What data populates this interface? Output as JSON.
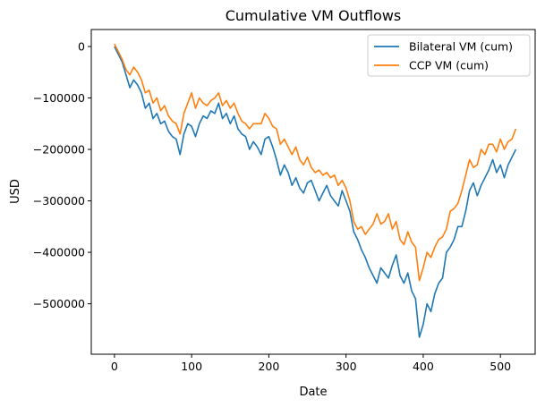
{
  "chart_data": {
    "type": "line",
    "title": "Cumulative VM Outflows",
    "xlabel": "Date",
    "ylabel": "USD",
    "xlim": [
      -30,
      545
    ],
    "ylim": [
      -598000,
      33000
    ],
    "xticks": [
      0,
      100,
      200,
      300,
      400,
      500
    ],
    "yticks": [
      0,
      -100000,
      -200000,
      -300000,
      -400000,
      -500000
    ],
    "legend_position": "top-right",
    "grid": false,
    "series": [
      {
        "name": "Bilateral VM (cum)",
        "color": "#1f77b4",
        "points": [
          [
            0,
            0
          ],
          [
            5,
            -15000
          ],
          [
            10,
            -30000
          ],
          [
            15,
            -55000
          ],
          [
            20,
            -80000
          ],
          [
            25,
            -65000
          ],
          [
            30,
            -75000
          ],
          [
            35,
            -90000
          ],
          [
            40,
            -120000
          ],
          [
            45,
            -110000
          ],
          [
            50,
            -140000
          ],
          [
            55,
            -130000
          ],
          [
            60,
            -150000
          ],
          [
            65,
            -145000
          ],
          [
            70,
            -165000
          ],
          [
            75,
            -175000
          ],
          [
            80,
            -180000
          ],
          [
            85,
            -210000
          ],
          [
            90,
            -170000
          ],
          [
            95,
            -150000
          ],
          [
            100,
            -155000
          ],
          [
            105,
            -175000
          ],
          [
            110,
            -150000
          ],
          [
            115,
            -135000
          ],
          [
            120,
            -140000
          ],
          [
            125,
            -125000
          ],
          [
            130,
            -130000
          ],
          [
            135,
            -110000
          ],
          [
            140,
            -140000
          ],
          [
            145,
            -130000
          ],
          [
            150,
            -150000
          ],
          [
            155,
            -135000
          ],
          [
            160,
            -160000
          ],
          [
            165,
            -170000
          ],
          [
            170,
            -175000
          ],
          [
            175,
            -200000
          ],
          [
            180,
            -185000
          ],
          [
            185,
            -195000
          ],
          [
            190,
            -210000
          ],
          [
            195,
            -180000
          ],
          [
            200,
            -175000
          ],
          [
            205,
            -195000
          ],
          [
            210,
            -220000
          ],
          [
            215,
            -250000
          ],
          [
            220,
            -230000
          ],
          [
            225,
            -245000
          ],
          [
            230,
            -270000
          ],
          [
            235,
            -255000
          ],
          [
            240,
            -275000
          ],
          [
            245,
            -285000
          ],
          [
            250,
            -265000
          ],
          [
            255,
            -260000
          ],
          [
            260,
            -280000
          ],
          [
            265,
            -300000
          ],
          [
            270,
            -285000
          ],
          [
            275,
            -270000
          ],
          [
            280,
            -290000
          ],
          [
            285,
            -300000
          ],
          [
            290,
            -310000
          ],
          [
            295,
            -280000
          ],
          [
            300,
            -300000
          ],
          [
            305,
            -320000
          ],
          [
            310,
            -360000
          ],
          [
            315,
            -375000
          ],
          [
            320,
            -395000
          ],
          [
            325,
            -410000
          ],
          [
            330,
            -430000
          ],
          [
            335,
            -445000
          ],
          [
            340,
            -460000
          ],
          [
            345,
            -430000
          ],
          [
            350,
            -440000
          ],
          [
            355,
            -450000
          ],
          [
            360,
            -425000
          ],
          [
            365,
            -405000
          ],
          [
            370,
            -445000
          ],
          [
            375,
            -460000
          ],
          [
            380,
            -440000
          ],
          [
            385,
            -475000
          ],
          [
            390,
            -490000
          ],
          [
            395,
            -565000
          ],
          [
            400,
            -540000
          ],
          [
            405,
            -500000
          ],
          [
            410,
            -515000
          ],
          [
            415,
            -480000
          ],
          [
            420,
            -460000
          ],
          [
            425,
            -450000
          ],
          [
            430,
            -400000
          ],
          [
            435,
            -390000
          ],
          [
            440,
            -375000
          ],
          [
            445,
            -350000
          ],
          [
            450,
            -350000
          ],
          [
            455,
            -320000
          ],
          [
            460,
            -280000
          ],
          [
            465,
            -265000
          ],
          [
            470,
            -290000
          ],
          [
            475,
            -270000
          ],
          [
            480,
            -255000
          ],
          [
            485,
            -240000
          ],
          [
            490,
            -220000
          ],
          [
            495,
            -245000
          ],
          [
            500,
            -230000
          ],
          [
            505,
            -255000
          ],
          [
            510,
            -230000
          ],
          [
            515,
            -215000
          ],
          [
            520,
            -200000
          ]
        ]
      },
      {
        "name": "CCP VM (cum)",
        "color": "#ff7f0e",
        "points": [
          [
            0,
            5000
          ],
          [
            5,
            -10000
          ],
          [
            10,
            -25000
          ],
          [
            15,
            -45000
          ],
          [
            20,
            -55000
          ],
          [
            25,
            -40000
          ],
          [
            30,
            -50000
          ],
          [
            35,
            -65000
          ],
          [
            40,
            -90000
          ],
          [
            45,
            -85000
          ],
          [
            50,
            -110000
          ],
          [
            55,
            -100000
          ],
          [
            60,
            -125000
          ],
          [
            65,
            -115000
          ],
          [
            70,
            -135000
          ],
          [
            75,
            -145000
          ],
          [
            80,
            -150000
          ],
          [
            85,
            -170000
          ],
          [
            90,
            -130000
          ],
          [
            95,
            -110000
          ],
          [
            100,
            -90000
          ],
          [
            105,
            -120000
          ],
          [
            110,
            -100000
          ],
          [
            115,
            -110000
          ],
          [
            120,
            -115000
          ],
          [
            125,
            -105000
          ],
          [
            130,
            -100000
          ],
          [
            135,
            -90000
          ],
          [
            140,
            -115000
          ],
          [
            145,
            -105000
          ],
          [
            150,
            -120000
          ],
          [
            155,
            -110000
          ],
          [
            160,
            -130000
          ],
          [
            165,
            -145000
          ],
          [
            170,
            -150000
          ],
          [
            175,
            -160000
          ],
          [
            180,
            -150000
          ],
          [
            185,
            -150000
          ],
          [
            190,
            -150000
          ],
          [
            195,
            -130000
          ],
          [
            200,
            -140000
          ],
          [
            205,
            -155000
          ],
          [
            210,
            -160000
          ],
          [
            215,
            -190000
          ],
          [
            220,
            -180000
          ],
          [
            225,
            -195000
          ],
          [
            230,
            -210000
          ],
          [
            235,
            -195000
          ],
          [
            240,
            -220000
          ],
          [
            245,
            -230000
          ],
          [
            250,
            -215000
          ],
          [
            255,
            -235000
          ],
          [
            260,
            -245000
          ],
          [
            265,
            -240000
          ],
          [
            270,
            -250000
          ],
          [
            275,
            -245000
          ],
          [
            280,
            -255000
          ],
          [
            285,
            -250000
          ],
          [
            290,
            -270000
          ],
          [
            295,
            -260000
          ],
          [
            300,
            -275000
          ],
          [
            305,
            -300000
          ],
          [
            310,
            -340000
          ],
          [
            315,
            -355000
          ],
          [
            320,
            -350000
          ],
          [
            325,
            -365000
          ],
          [
            330,
            -355000
          ],
          [
            335,
            -345000
          ],
          [
            340,
            -325000
          ],
          [
            345,
            -345000
          ],
          [
            350,
            -340000
          ],
          [
            355,
            -325000
          ],
          [
            360,
            -355000
          ],
          [
            365,
            -340000
          ],
          [
            370,
            -375000
          ],
          [
            375,
            -385000
          ],
          [
            380,
            -360000
          ],
          [
            385,
            -380000
          ],
          [
            390,
            -390000
          ],
          [
            395,
            -455000
          ],
          [
            400,
            -430000
          ],
          [
            405,
            -400000
          ],
          [
            410,
            -410000
          ],
          [
            415,
            -390000
          ],
          [
            420,
            -375000
          ],
          [
            425,
            -370000
          ],
          [
            430,
            -355000
          ],
          [
            435,
            -320000
          ],
          [
            440,
            -315000
          ],
          [
            445,
            -305000
          ],
          [
            450,
            -280000
          ],
          [
            455,
            -250000
          ],
          [
            460,
            -220000
          ],
          [
            465,
            -235000
          ],
          [
            470,
            -230000
          ],
          [
            475,
            -200000
          ],
          [
            480,
            -210000
          ],
          [
            485,
            -190000
          ],
          [
            490,
            -190000
          ],
          [
            495,
            -205000
          ],
          [
            500,
            -180000
          ],
          [
            505,
            -200000
          ],
          [
            510,
            -185000
          ],
          [
            515,
            -180000
          ],
          [
            520,
            -160000
          ]
        ]
      }
    ]
  }
}
